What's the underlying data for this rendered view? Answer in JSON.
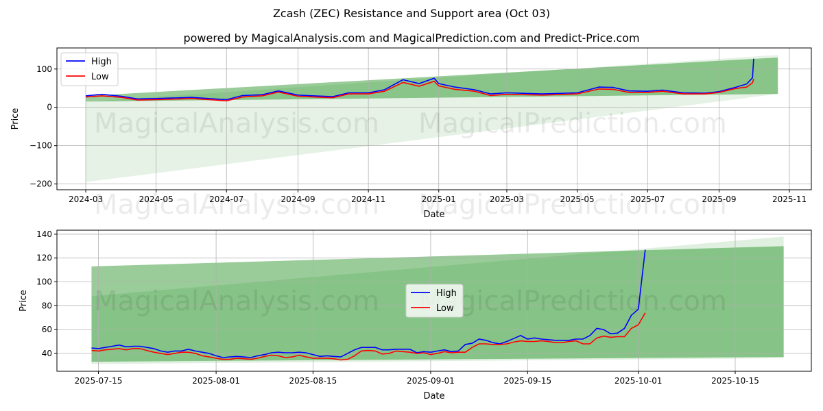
{
  "title": "Zcash (ZEC) Resistance and Support area (Oct 03)",
  "subtitle": "powered by MagicalAnalysis.com and MagicalPrediction.com and Predict-Price.com",
  "watermarks": [
    "MagicalAnalysis.com",
    "MagicalPrediction.com"
  ],
  "colors": {
    "high": "#0000ff",
    "low": "#ff0000",
    "band": "#008000"
  },
  "chart_data": [
    {
      "type": "line",
      "xlabel": "Date",
      "ylabel": "Price",
      "xlim": [
        "2024-02-05",
        "2025-11-20"
      ],
      "ylim": [
        -215,
        155
      ],
      "yticks": [
        100,
        0,
        -100,
        -200
      ],
      "ytick_labels": [
        "100",
        "0",
        "−100",
        "−200"
      ],
      "xticks": [
        "2024-03-01",
        "2024-05-01",
        "2024-07-01",
        "2024-09-01",
        "2024-11-01",
        "2025-01-01",
        "2025-03-01",
        "2025-05-01",
        "2025-07-01",
        "2025-09-01",
        "2025-11-01"
      ],
      "xtick_labels": [
        "2024-03",
        "2024-05",
        "2024-07",
        "2024-09",
        "2024-11",
        "2025-01",
        "2025-03",
        "2025-05",
        "2025-07",
        "2025-09",
        "2025-11"
      ],
      "legend": {
        "position": "top-left",
        "entries": [
          "High",
          "Low"
        ]
      },
      "bands": [
        {
          "start": "2024-03-01",
          "end": "2025-10-22",
          "lo": [
            -195,
            35
          ],
          "hi": [
            15,
            137
          ],
          "alpha": 0.1
        },
        {
          "start": "2024-03-01",
          "end": "2025-10-22",
          "lo": [
            15,
            35
          ],
          "hi": [
            30,
            130
          ],
          "alpha": 0.4
        }
      ],
      "dates": [
        "2024-03-01",
        "2024-03-15",
        "2024-04-01",
        "2024-04-15",
        "2024-05-01",
        "2024-06-01",
        "2024-07-01",
        "2024-07-15",
        "2024-08-01",
        "2024-08-15",
        "2024-09-01",
        "2024-09-15",
        "2024-10-01",
        "2024-10-15",
        "2024-11-01",
        "2024-11-15",
        "2024-12-01",
        "2024-12-15",
        "2024-12-28",
        "2025-01-01",
        "2025-01-15",
        "2025-02-01",
        "2025-02-15",
        "2025-03-01",
        "2025-04-01",
        "2025-05-01",
        "2025-05-20",
        "2025-06-01",
        "2025-06-15",
        "2025-07-01",
        "2025-07-14",
        "2025-08-01",
        "2025-08-20",
        "2025-09-01",
        "2025-09-15",
        "2025-09-25",
        "2025-09-30",
        "2025-10-01"
      ],
      "high": [
        30,
        34,
        29,
        22,
        23,
        26,
        20,
        31,
        33,
        43,
        32,
        30,
        28,
        38,
        38,
        46,
        72,
        62,
        76,
        62,
        53,
        46,
        35,
        38,
        35,
        38,
        53,
        52,
        43,
        42,
        45,
        38,
        37,
        41,
        52,
        61,
        77,
        127
      ],
      "low": [
        27,
        30,
        26,
        19,
        20,
        23,
        17,
        27,
        30,
        40,
        29,
        27,
        25,
        35,
        35,
        42,
        65,
        55,
        68,
        56,
        47,
        42,
        31,
        34,
        32,
        35,
        48,
        47,
        39,
        39,
        42,
        35,
        35,
        39,
        49,
        53,
        64,
        74
      ]
    },
    {
      "type": "line",
      "xlabel": "Date",
      "ylabel": "Price",
      "xlim": [
        "2025-07-09",
        "2025-10-26"
      ],
      "ylim": [
        25,
        143.4
      ],
      "yticks": [
        140,
        120,
        100,
        80,
        60,
        40
      ],
      "ytick_labels": [
        "140",
        "120",
        "100",
        "80",
        "60",
        "40"
      ],
      "xticks": [
        "2025-07-15",
        "2025-08-01",
        "2025-08-15",
        "2025-09-01",
        "2025-09-15",
        "2025-10-01",
        "2025-10-15"
      ],
      "xtick_labels": [
        "2025-07-15",
        "2025-08-01",
        "2025-08-15",
        "2025-09-01",
        "2025-09-15",
        "2025-10-01",
        "2025-10-15"
      ],
      "legend": {
        "position": "center",
        "entries": [
          "High",
          "Low"
        ]
      },
      "bands": [
        {
          "start": "2025-07-14",
          "end": "2025-10-22",
          "lo": [
            31,
            36
          ],
          "hi": [
            88,
            138
          ],
          "alpha": 0.12
        },
        {
          "start": "2025-07-14",
          "end": "2025-10-22",
          "lo": [
            33,
            37
          ],
          "hi": [
            113,
            130
          ],
          "alpha": 0.4
        }
      ],
      "start_date": "2025-07-14",
      "high": [
        44.5,
        44,
        45,
        46,
        47,
        45.5,
        46,
        46,
        45,
        44,
        42,
        41,
        42,
        42,
        43.5,
        42,
        41,
        40,
        38,
        36.5,
        37,
        37.5,
        37,
        36.5,
        38,
        39,
        40.5,
        41,
        40.5,
        40.5,
        41,
        40.5,
        39,
        37.5,
        38,
        37.5,
        37,
        40,
        43,
        45,
        45,
        45,
        43,
        43,
        43.5,
        43.5,
        43.5,
        40.5,
        41.5,
        41,
        42,
        43,
        41.5,
        42,
        47.5,
        48.5,
        52,
        51,
        49,
        48,
        50,
        52.5,
        55,
        52,
        53,
        52,
        51.5,
        51,
        51,
        51,
        52,
        52,
        55,
        61,
        60,
        56.5,
        57,
        61,
        72,
        77,
        127
      ],
      "low": [
        42.5,
        42,
        43,
        43.5,
        44,
        43,
        44,
        44,
        42.5,
        41,
        40,
        39,
        40,
        41,
        41,
        40,
        38,
        37,
        36,
        35,
        35,
        36,
        35.5,
        35,
        36,
        37.5,
        38.5,
        38,
        36.5,
        37,
        38.5,
        37,
        36,
        36,
        36,
        35.5,
        34.5,
        35,
        38,
        42,
        42.5,
        42,
        39.5,
        40,
        42,
        41.5,
        41,
        40,
        40.5,
        39,
        40,
        41.5,
        40.5,
        41,
        41,
        45,
        48,
        48,
        47.5,
        47.5,
        48,
        49.5,
        50.5,
        50,
        50,
        50.5,
        50,
        49,
        49,
        50,
        50.5,
        48,
        48,
        53,
        54.5,
        53.5,
        54,
        54,
        61,
        64,
        74
      ]
    }
  ]
}
